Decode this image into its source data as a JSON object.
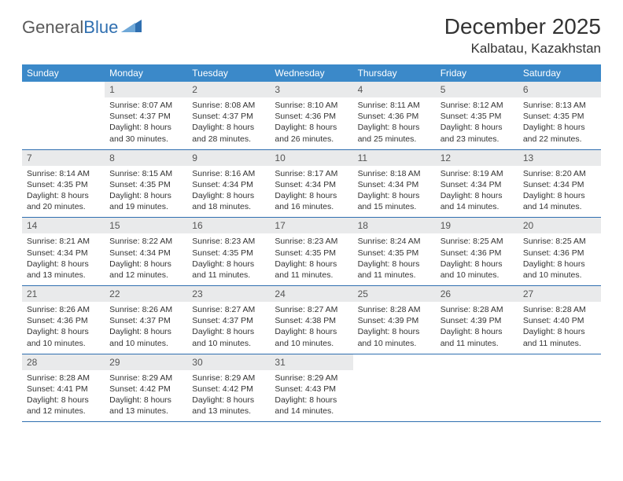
{
  "brand": {
    "part1": "General",
    "part2": "Blue"
  },
  "title": "December 2025",
  "location": "Kalbatau, Kazakhstan",
  "colors": {
    "header_bg": "#3b89c9",
    "header_fg": "#ffffff",
    "daynum_bg": "#e9eaeb",
    "rule": "#2f6fb0",
    "logo_gray": "#5a5a5a",
    "logo_blue": "#2f6fb0"
  },
  "weekdays": [
    "Sunday",
    "Monday",
    "Tuesday",
    "Wednesday",
    "Thursday",
    "Friday",
    "Saturday"
  ],
  "weeks": [
    [
      {
        "n": "",
        "sr": "",
        "ss": "",
        "dl": ""
      },
      {
        "n": "1",
        "sr": "Sunrise: 8:07 AM",
        "ss": "Sunset: 4:37 PM",
        "dl": "Daylight: 8 hours and 30 minutes."
      },
      {
        "n": "2",
        "sr": "Sunrise: 8:08 AM",
        "ss": "Sunset: 4:37 PM",
        "dl": "Daylight: 8 hours and 28 minutes."
      },
      {
        "n": "3",
        "sr": "Sunrise: 8:10 AM",
        "ss": "Sunset: 4:36 PM",
        "dl": "Daylight: 8 hours and 26 minutes."
      },
      {
        "n": "4",
        "sr": "Sunrise: 8:11 AM",
        "ss": "Sunset: 4:36 PM",
        "dl": "Daylight: 8 hours and 25 minutes."
      },
      {
        "n": "5",
        "sr": "Sunrise: 8:12 AM",
        "ss": "Sunset: 4:35 PM",
        "dl": "Daylight: 8 hours and 23 minutes."
      },
      {
        "n": "6",
        "sr": "Sunrise: 8:13 AM",
        "ss": "Sunset: 4:35 PM",
        "dl": "Daylight: 8 hours and 22 minutes."
      }
    ],
    [
      {
        "n": "7",
        "sr": "Sunrise: 8:14 AM",
        "ss": "Sunset: 4:35 PM",
        "dl": "Daylight: 8 hours and 20 minutes."
      },
      {
        "n": "8",
        "sr": "Sunrise: 8:15 AM",
        "ss": "Sunset: 4:35 PM",
        "dl": "Daylight: 8 hours and 19 minutes."
      },
      {
        "n": "9",
        "sr": "Sunrise: 8:16 AM",
        "ss": "Sunset: 4:34 PM",
        "dl": "Daylight: 8 hours and 18 minutes."
      },
      {
        "n": "10",
        "sr": "Sunrise: 8:17 AM",
        "ss": "Sunset: 4:34 PM",
        "dl": "Daylight: 8 hours and 16 minutes."
      },
      {
        "n": "11",
        "sr": "Sunrise: 8:18 AM",
        "ss": "Sunset: 4:34 PM",
        "dl": "Daylight: 8 hours and 15 minutes."
      },
      {
        "n": "12",
        "sr": "Sunrise: 8:19 AM",
        "ss": "Sunset: 4:34 PM",
        "dl": "Daylight: 8 hours and 14 minutes."
      },
      {
        "n": "13",
        "sr": "Sunrise: 8:20 AM",
        "ss": "Sunset: 4:34 PM",
        "dl": "Daylight: 8 hours and 14 minutes."
      }
    ],
    [
      {
        "n": "14",
        "sr": "Sunrise: 8:21 AM",
        "ss": "Sunset: 4:34 PM",
        "dl": "Daylight: 8 hours and 13 minutes."
      },
      {
        "n": "15",
        "sr": "Sunrise: 8:22 AM",
        "ss": "Sunset: 4:34 PM",
        "dl": "Daylight: 8 hours and 12 minutes."
      },
      {
        "n": "16",
        "sr": "Sunrise: 8:23 AM",
        "ss": "Sunset: 4:35 PM",
        "dl": "Daylight: 8 hours and 11 minutes."
      },
      {
        "n": "17",
        "sr": "Sunrise: 8:23 AM",
        "ss": "Sunset: 4:35 PM",
        "dl": "Daylight: 8 hours and 11 minutes."
      },
      {
        "n": "18",
        "sr": "Sunrise: 8:24 AM",
        "ss": "Sunset: 4:35 PM",
        "dl": "Daylight: 8 hours and 11 minutes."
      },
      {
        "n": "19",
        "sr": "Sunrise: 8:25 AM",
        "ss": "Sunset: 4:36 PM",
        "dl": "Daylight: 8 hours and 10 minutes."
      },
      {
        "n": "20",
        "sr": "Sunrise: 8:25 AM",
        "ss": "Sunset: 4:36 PM",
        "dl": "Daylight: 8 hours and 10 minutes."
      }
    ],
    [
      {
        "n": "21",
        "sr": "Sunrise: 8:26 AM",
        "ss": "Sunset: 4:36 PM",
        "dl": "Daylight: 8 hours and 10 minutes."
      },
      {
        "n": "22",
        "sr": "Sunrise: 8:26 AM",
        "ss": "Sunset: 4:37 PM",
        "dl": "Daylight: 8 hours and 10 minutes."
      },
      {
        "n": "23",
        "sr": "Sunrise: 8:27 AM",
        "ss": "Sunset: 4:37 PM",
        "dl": "Daylight: 8 hours and 10 minutes."
      },
      {
        "n": "24",
        "sr": "Sunrise: 8:27 AM",
        "ss": "Sunset: 4:38 PM",
        "dl": "Daylight: 8 hours and 10 minutes."
      },
      {
        "n": "25",
        "sr": "Sunrise: 8:28 AM",
        "ss": "Sunset: 4:39 PM",
        "dl": "Daylight: 8 hours and 10 minutes."
      },
      {
        "n": "26",
        "sr": "Sunrise: 8:28 AM",
        "ss": "Sunset: 4:39 PM",
        "dl": "Daylight: 8 hours and 11 minutes."
      },
      {
        "n": "27",
        "sr": "Sunrise: 8:28 AM",
        "ss": "Sunset: 4:40 PM",
        "dl": "Daylight: 8 hours and 11 minutes."
      }
    ],
    [
      {
        "n": "28",
        "sr": "Sunrise: 8:28 AM",
        "ss": "Sunset: 4:41 PM",
        "dl": "Daylight: 8 hours and 12 minutes."
      },
      {
        "n": "29",
        "sr": "Sunrise: 8:29 AM",
        "ss": "Sunset: 4:42 PM",
        "dl": "Daylight: 8 hours and 13 minutes."
      },
      {
        "n": "30",
        "sr": "Sunrise: 8:29 AM",
        "ss": "Sunset: 4:42 PM",
        "dl": "Daylight: 8 hours and 13 minutes."
      },
      {
        "n": "31",
        "sr": "Sunrise: 8:29 AM",
        "ss": "Sunset: 4:43 PM",
        "dl": "Daylight: 8 hours and 14 minutes."
      },
      {
        "n": "",
        "sr": "",
        "ss": "",
        "dl": ""
      },
      {
        "n": "",
        "sr": "",
        "ss": "",
        "dl": ""
      },
      {
        "n": "",
        "sr": "",
        "ss": "",
        "dl": ""
      }
    ]
  ]
}
